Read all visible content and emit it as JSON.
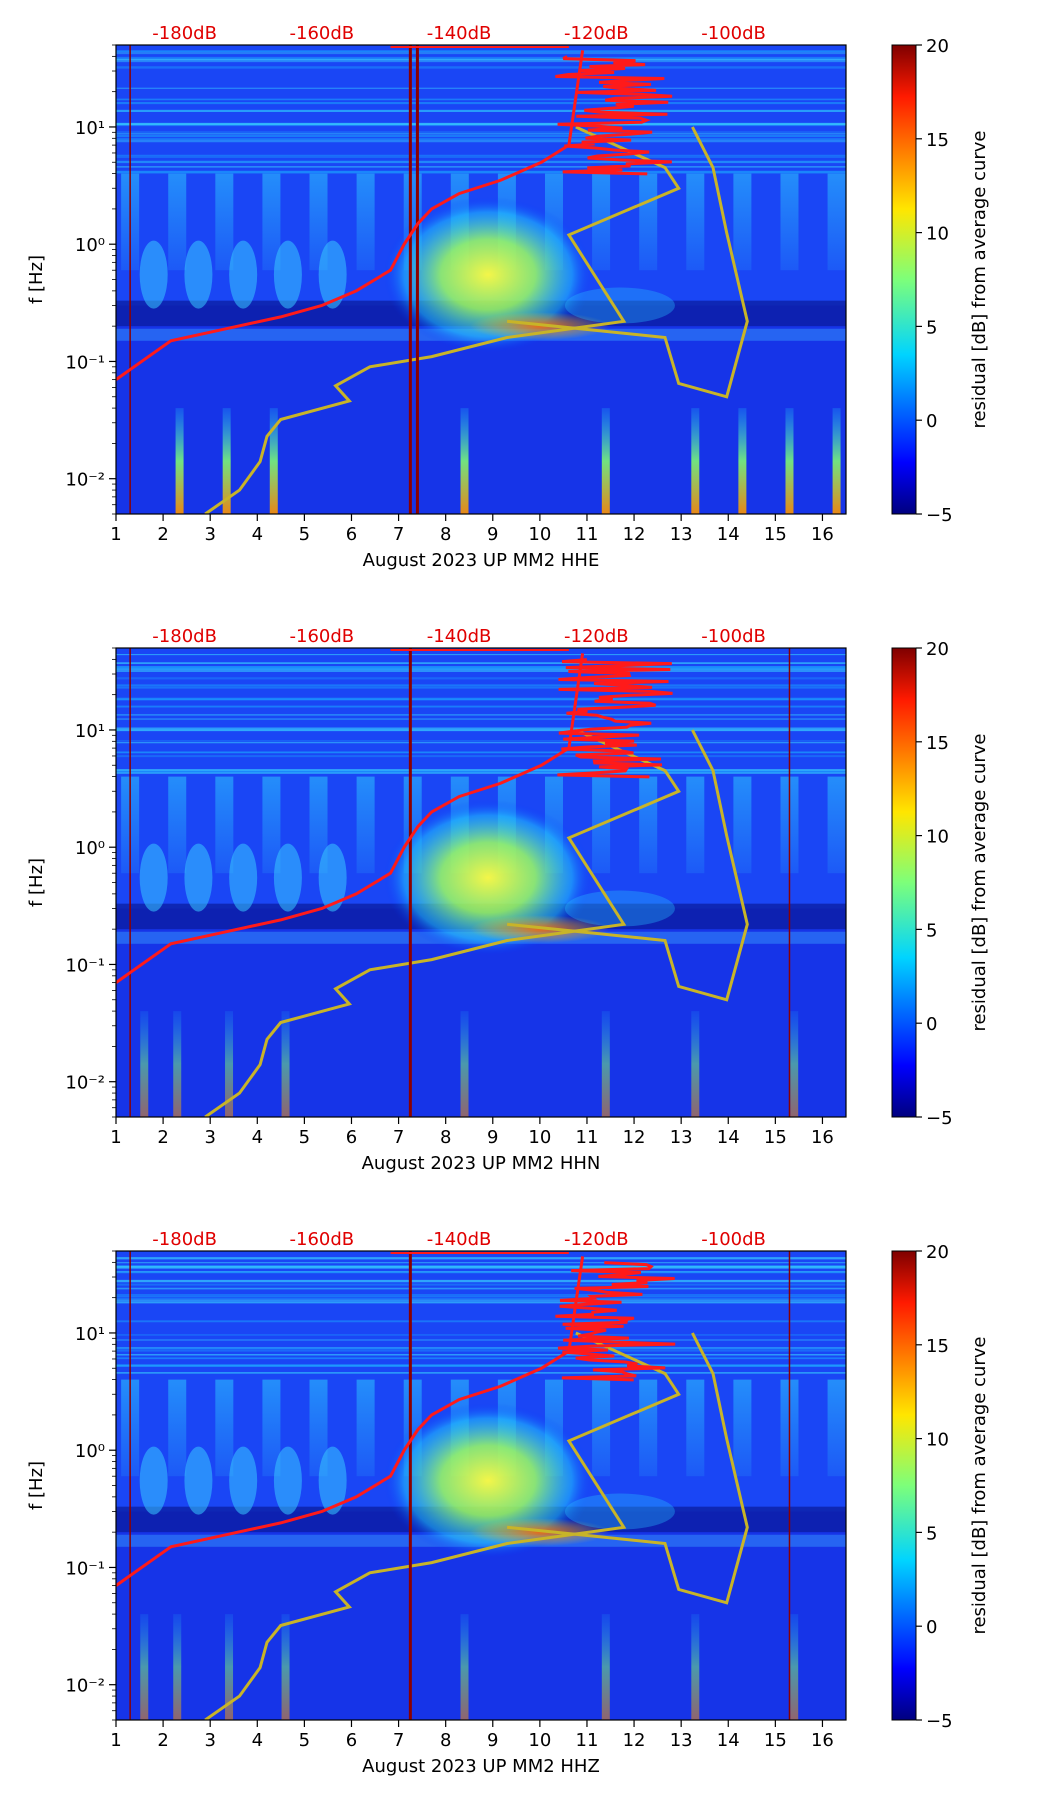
{
  "chart_data": [
    {
      "type": "heatmap",
      "title": "",
      "xlabel": "August 2023 UP MM2  HHE",
      "ylabel": "f [Hz]",
      "colorbar_label": "residual [dB] from average curve",
      "x_ticks": [
        "1",
        "2",
        "3",
        "4",
        "5",
        "6",
        "7",
        "8",
        "9",
        "10",
        "11",
        "12",
        "13",
        "14",
        "15",
        "16"
      ],
      "y_ticks": [
        "10⁻²",
        "10⁻¹",
        "10⁰",
        "10¹"
      ],
      "top_db_ticks": [
        "-180dB",
        "-160dB",
        "-140dB",
        "-120dB",
        "-100dB"
      ],
      "colorbar_ticks": [
        "20",
        "15",
        "10",
        "5",
        "0",
        "−5"
      ],
      "xlim": [
        1,
        16.5
      ],
      "ylim": [
        0.005,
        50
      ],
      "clim": [
        -5,
        20
      ],
      "vlines": [
        1.3,
        7.25,
        7.4
      ],
      "psd_curve": {
        "db": [
          -190,
          -182,
          -174,
          -166,
          -160,
          -155,
          -150,
          -148,
          -146,
          -144,
          -140,
          -134,
          -128,
          -124,
          -122
        ],
        "f": [
          0.07,
          0.15,
          0.19,
          0.24,
          0.3,
          0.4,
          0.6,
          1.0,
          1.5,
          2.0,
          2.7,
          3.5,
          5,
          7,
          45
        ]
      },
      "nhnm_nlnm": {
        "db": [
          -177,
          -172,
          -169,
          -168,
          -166,
          -156,
          -158,
          -153,
          -144,
          -133,
          -116,
          -124,
          -108,
          -110,
          -123,
          -133,
          -110,
          -108,
          -101,
          -98,
          -101,
          -103,
          -106
        ],
        "f": [
          0.005,
          0.008,
          0.014,
          0.023,
          0.032,
          0.046,
          0.062,
          0.09,
          0.11,
          0.16,
          0.22,
          1.2,
          3,
          4.5,
          10,
          0.22,
          0.16,
          0.065,
          0.05,
          0.22,
          1.25,
          4.5,
          10
        ]
      }
    },
    {
      "type": "heatmap",
      "title": "",
      "xlabel": "August 2023 UP MM2  HHN",
      "ylabel": "f [Hz]",
      "colorbar_label": "residual [dB] from average curve",
      "x_ticks": [
        "1",
        "2",
        "3",
        "4",
        "5",
        "6",
        "7",
        "8",
        "9",
        "10",
        "11",
        "12",
        "13",
        "14",
        "15",
        "16"
      ],
      "y_ticks": [
        "10⁻²",
        "10⁻¹",
        "10⁰",
        "10¹"
      ],
      "top_db_ticks": [
        "-180dB",
        "-160dB",
        "-140dB",
        "-120dB",
        "-100dB"
      ],
      "colorbar_ticks": [
        "20",
        "15",
        "10",
        "5",
        "0",
        "−5"
      ],
      "xlim": [
        1,
        16.5
      ],
      "ylim": [
        0.005,
        50
      ],
      "clim": [
        -5,
        20
      ],
      "vlines": [
        1.3,
        7.25,
        15.3
      ]
    },
    {
      "type": "heatmap",
      "title": "",
      "xlabel": "August 2023 UP MM2  HHZ",
      "ylabel": "f [Hz]",
      "colorbar_label": "residual [dB] from average curve",
      "x_ticks": [
        "1",
        "2",
        "3",
        "4",
        "5",
        "6",
        "7",
        "8",
        "9",
        "10",
        "11",
        "12",
        "13",
        "14",
        "15",
        "16"
      ],
      "y_ticks": [
        "10⁻²",
        "10⁻¹",
        "10⁰",
        "10¹"
      ],
      "top_db_ticks": [
        "-180dB",
        "-160dB",
        "-140dB",
        "-120dB",
        "-100dB"
      ],
      "colorbar_ticks": [
        "20",
        "15",
        "10",
        "5",
        "0",
        "−5"
      ],
      "xlim": [
        1,
        16.5
      ],
      "ylim": [
        0.005,
        50
      ],
      "clim": [
        -5,
        20
      ],
      "vlines": [
        1.3,
        7.25,
        15.3
      ]
    }
  ],
  "colors": {
    "psd_line": "#ff1a1a",
    "noise_model": "#c8b428",
    "vline": "#8b0000",
    "db_tick": "#e00000"
  }
}
